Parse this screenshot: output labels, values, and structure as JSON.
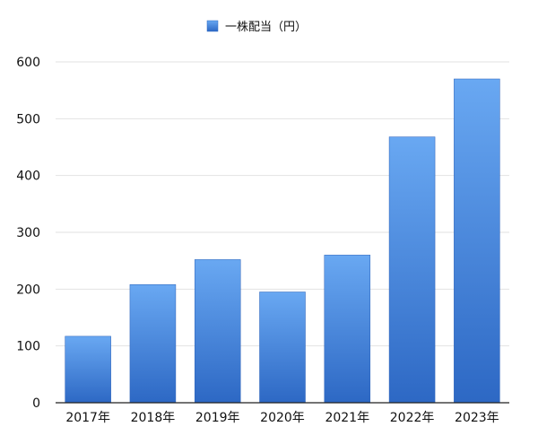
{
  "chart_data": {
    "type": "bar",
    "title": "",
    "xlabel": "",
    "ylabel": "",
    "categories": [
      "2017年",
      "2018年",
      "2019年",
      "2020年",
      "2021年",
      "2022年",
      "2023年"
    ],
    "series": [
      {
        "name": "一株配当（円）",
        "values": [
          117,
          208,
          252,
          195,
          260,
          468,
          570
        ]
      }
    ],
    "ylim": [
      0,
      600
    ],
    "yticks": [
      "0",
      "100",
      "200",
      "300",
      "400",
      "500",
      "600"
    ],
    "grid": true,
    "legend": "top-center",
    "colors": {
      "bar_top": "#69a8f2",
      "bar_bottom": "#2d68c4",
      "grid": "#e2e2e2",
      "axis": "#222222"
    }
  }
}
